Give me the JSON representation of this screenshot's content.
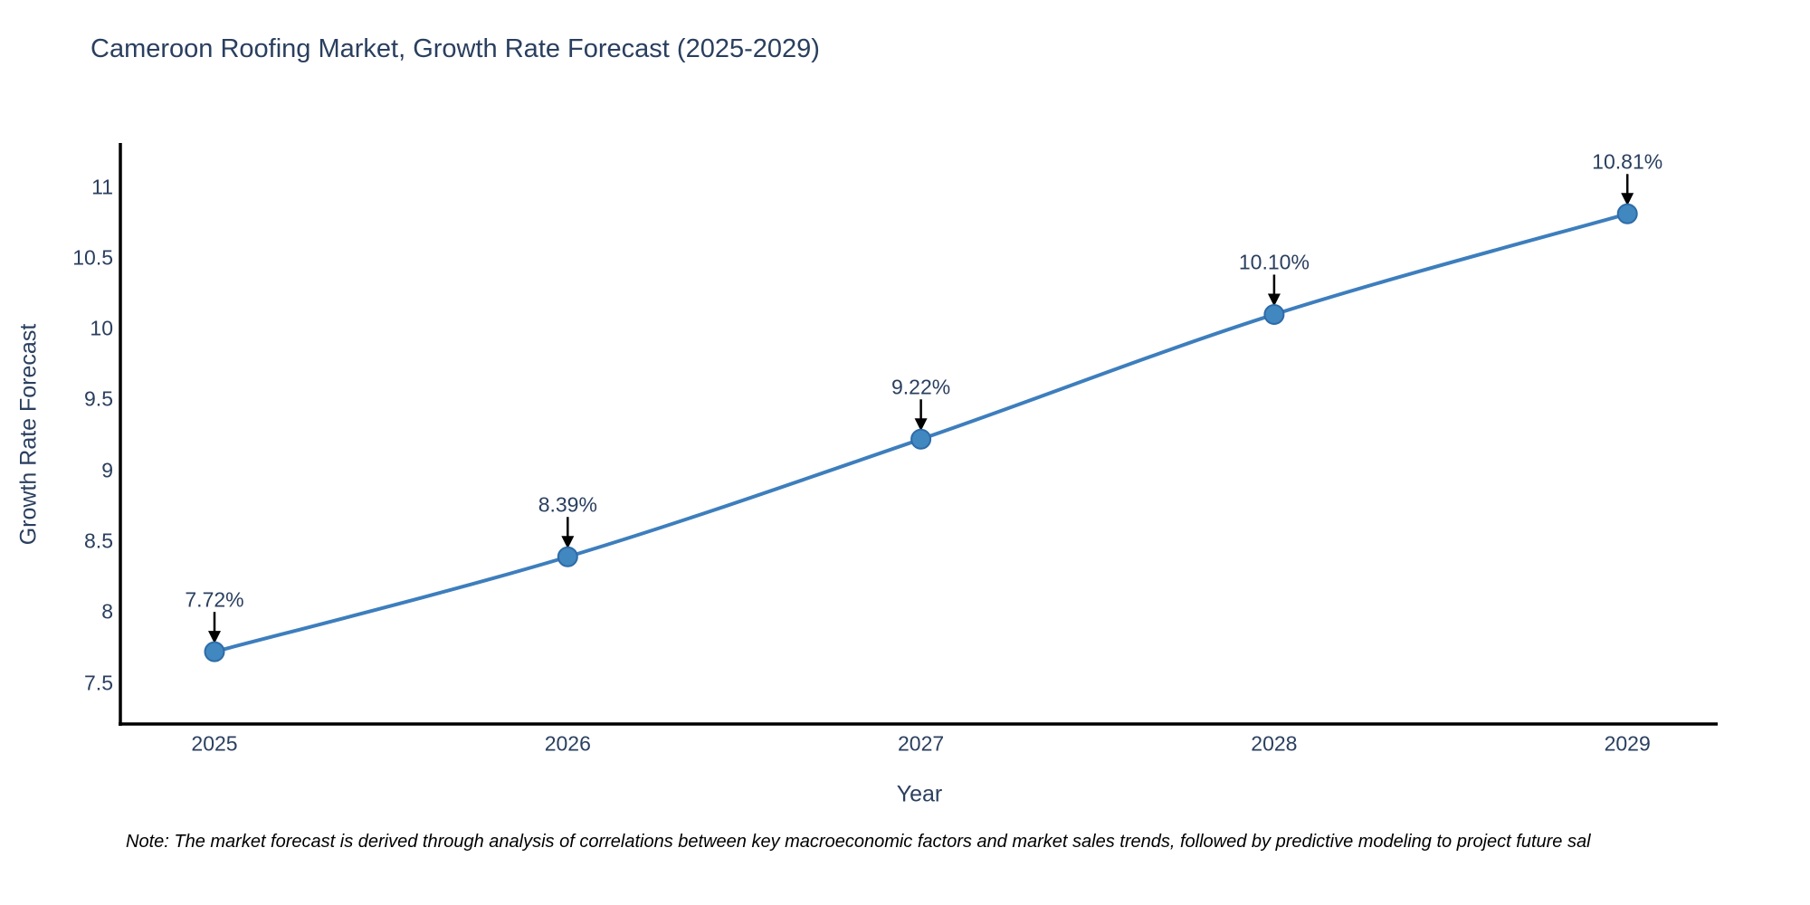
{
  "header": {
    "title": "Cameroon Roofing Market, Growth Rate Forecast (2025-2029)"
  },
  "footnote": "Note: The market forecast is derived through analysis of correlations between key macroeconomic factors and market sales trends, followed by predictive modeling to project future sal",
  "chart_data": {
    "type": "line",
    "title": "Cameroon Roofing Market, Growth Rate Forecast (2025-2029)",
    "xlabel": "Year",
    "ylabel": "Growth Rate Forecast",
    "categories": [
      "2025",
      "2026",
      "2027",
      "2028",
      "2029"
    ],
    "series": [
      {
        "name": "Growth Rate Forecast",
        "values": [
          7.72,
          8.39,
          9.22,
          10.1,
          10.81
        ]
      }
    ],
    "point_labels": [
      "7.72%",
      "8.39%",
      "9.22%",
      "10.10%",
      "10.81%"
    ],
    "yticks": [
      "7.5",
      "8",
      "8.5",
      "9",
      "9.5",
      "10",
      "10.5",
      "11"
    ],
    "ytick_values": [
      7.5,
      8,
      8.5,
      9,
      9.5,
      10,
      10.5,
      11
    ],
    "ylim": [
      7.21,
      11.31
    ],
    "grid": false,
    "legend": "none",
    "line_shape": "spline",
    "annotation_style": "value-above-with-down-arrow",
    "colors": {
      "line": "#3d7ebd",
      "marker_fill": "#4187c0",
      "marker_edge": "#2e6ba8",
      "text": "#2a3f5f",
      "axis": "#000000",
      "arrow": "#000000",
      "background": "#ffffff"
    }
  }
}
